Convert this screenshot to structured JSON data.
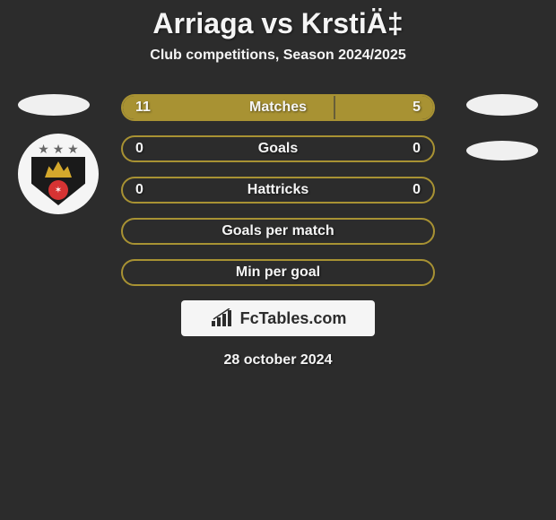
{
  "header": {
    "title": "Arriaga vs KrstiÄ‡",
    "subtitle": "Club competitions, Season 2024/2025"
  },
  "colors": {
    "background": "#2c2c2c",
    "text": "#f5f5f5",
    "bar_primary": "#a89233",
    "bar_secondary": "#a89233",
    "border": "#a89233",
    "logo_bg": "#f5f5f5"
  },
  "stats": [
    {
      "label": "Matches",
      "left_value": "11",
      "right_value": "5",
      "left_width_pct": 68,
      "right_width_pct": 32,
      "left_color": "#a89233",
      "right_color": "#a89233",
      "border_color": "#a89233",
      "show_divider": true
    },
    {
      "label": "Goals",
      "left_value": "0",
      "right_value": "0",
      "left_width_pct": 0,
      "right_width_pct": 0,
      "left_color": "#a89233",
      "right_color": "#a89233",
      "border_color": "#a89233",
      "show_divider": false
    },
    {
      "label": "Hattricks",
      "left_value": "0",
      "right_value": "0",
      "left_width_pct": 0,
      "right_width_pct": 0,
      "left_color": "#a89233",
      "right_color": "#a89233",
      "border_color": "#a89233",
      "show_divider": false
    },
    {
      "label": "Goals per match",
      "left_value": "",
      "right_value": "",
      "left_width_pct": 0,
      "right_width_pct": 0,
      "left_color": "#a89233",
      "right_color": "#a89233",
      "border_color": "#a89233",
      "show_divider": false
    },
    {
      "label": "Min per goal",
      "left_value": "",
      "right_value": "",
      "left_width_pct": 0,
      "right_width_pct": 0,
      "left_color": "#a89233",
      "right_color": "#a89233",
      "border_color": "#a89233",
      "show_divider": false
    }
  ],
  "footer": {
    "logo_text": "FcTables.com",
    "date": "28 october 2024"
  }
}
